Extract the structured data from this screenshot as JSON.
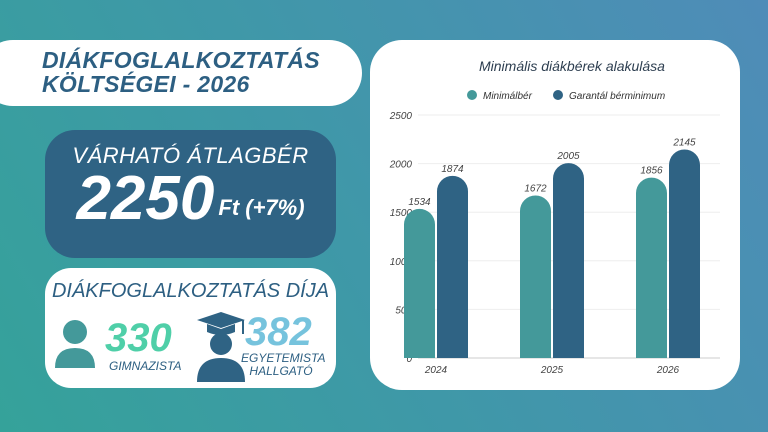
{
  "header": {
    "line1": "DIÁKFOGLALKOZTATÁS",
    "line2": "KÖLTSÉGEI - 2026"
  },
  "wage": {
    "label": "VÁRHATÓ ÁTLAGBÉR",
    "value": "2250",
    "unit": "Ft (+7%)"
  },
  "fee": {
    "title": "DIÁKFOGLALKOZTATÁS DÍJA",
    "items": [
      {
        "value": "330",
        "label": "GIMNAZISTA",
        "icon": "person-icon"
      },
      {
        "value": "382",
        "label1": "EGYETEMISTA",
        "label2": "HALLGATÓ",
        "icon": "graduate-icon"
      }
    ]
  },
  "colors": {
    "teal": "#44999a",
    "dark": "#2f6384",
    "green": "#4fcfa8",
    "lightblue": "#76c3dd"
  },
  "chart_data": {
    "type": "bar",
    "title": "Minimális diákbérek alakulása",
    "categories": [
      "2024",
      "2025",
      "2026"
    ],
    "series": [
      {
        "name": "Minimálbér",
        "values": [
          1534,
          1672,
          1856
        ],
        "color": "#44999a"
      },
      {
        "name": "Garantál bérminimum",
        "values": [
          1874,
          2005,
          2145
        ],
        "color": "#2f6384"
      }
    ],
    "ylim": [
      0,
      2500
    ],
    "yticks": [
      "0",
      "500",
      "1000",
      "1500",
      "2000",
      "2500"
    ],
    "legend": "top",
    "grid": true
  }
}
